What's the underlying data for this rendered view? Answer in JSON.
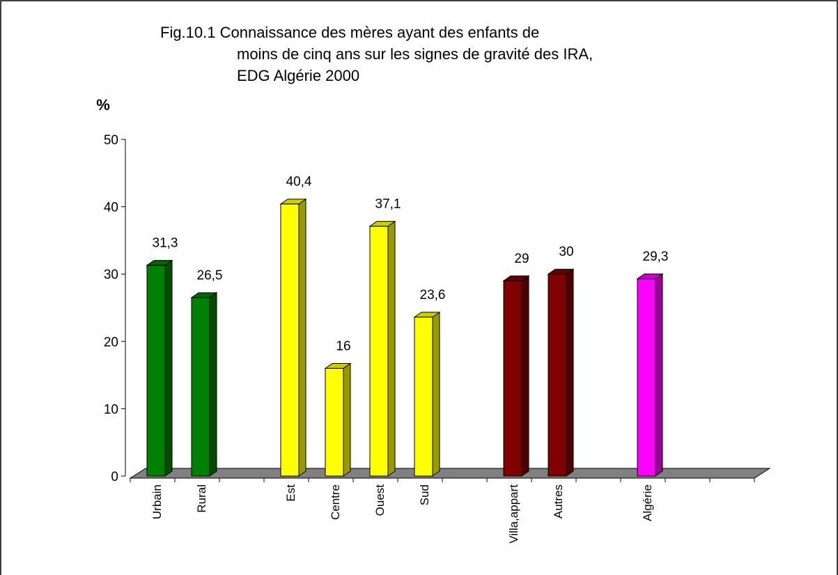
{
  "chart_data": {
    "type": "bar3d",
    "title": [
      "Fig.10.1 Connaissance des mères ayant des enfants de",
      "moins de cinq ans sur les signes de gravité des IRA,",
      "EDG Algérie 2000"
    ],
    "y_label": "%",
    "categories": [
      "Urbain",
      "Rural",
      null,
      "Est",
      "Centre",
      "Ouest",
      "Sud",
      null,
      "Villa,appart",
      "Autres",
      null,
      "Algérie",
      null,
      null
    ],
    "values": [
      31.3,
      26.5,
      null,
      40.4,
      16,
      37.1,
      23.6,
      null,
      29,
      30,
      null,
      29.3,
      null,
      null
    ],
    "value_labels": [
      "31,3",
      "26,5",
      null,
      "40,4",
      "16",
      "37,1",
      "23,6",
      null,
      "29",
      "30",
      null,
      "29,3",
      null,
      null
    ],
    "colors": [
      "#008000",
      "#008000",
      null,
      "#ffff00",
      "#ffff00",
      "#ffff00",
      "#ffff00",
      null,
      "#800000",
      "#800000",
      null,
      "#ff00ff",
      null,
      null
    ],
    "ylim": [
      0,
      50
    ],
    "yticks": [
      0,
      10,
      20,
      30,
      40,
      50
    ],
    "grid": false
  }
}
